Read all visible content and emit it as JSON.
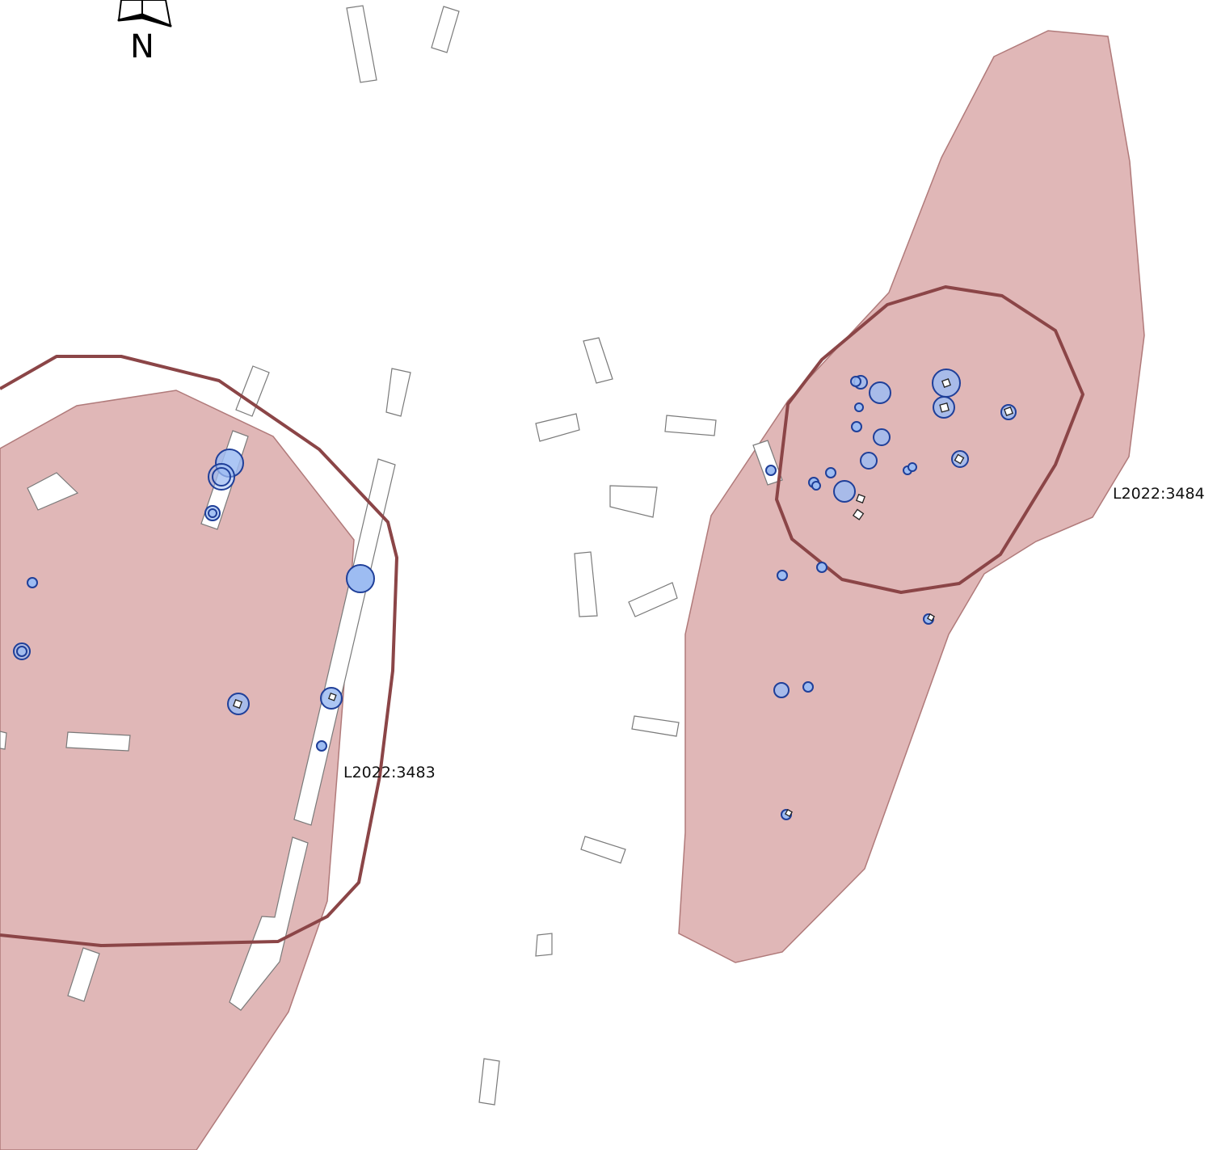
{
  "map": {
    "labels": {
      "site_west": "L2022:3483",
      "site_east": "L2022:3484"
    },
    "north_arrow": {
      "icon": "north-arrow-icon",
      "letter": "N"
    },
    "colors": {
      "background": "#ffffff",
      "area_fill": "#e0b7b7",
      "area_stroke": "#b07a7a",
      "boundary_stroke": "#8b4547",
      "building_fill": "#ffffff",
      "building_stroke": "#7a7a7a",
      "find_fill": "#9dbcf2",
      "find_stroke": "#1f3f99"
    }
  }
}
